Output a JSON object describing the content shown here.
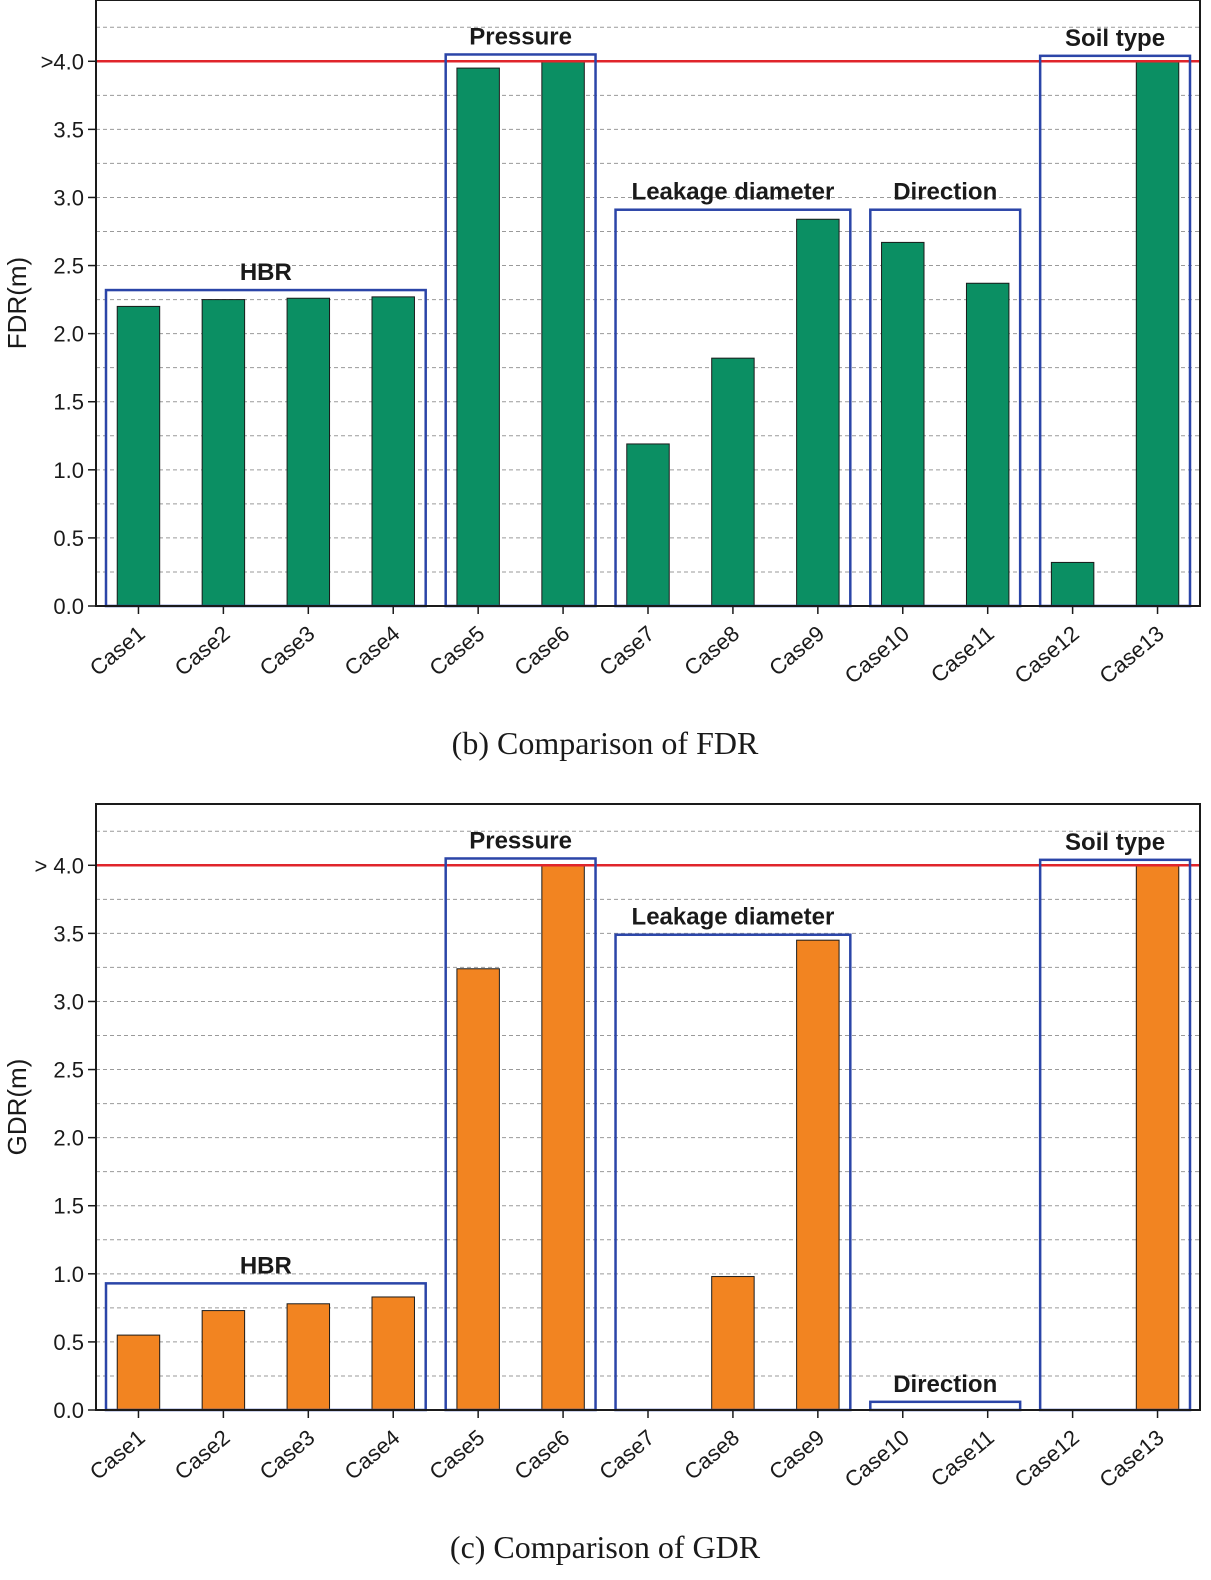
{
  "chart_data": [
    {
      "type": "bar",
      "title": "",
      "caption": "(b) Comparison of FDR",
      "ylabel": "FDR(m)",
      "xlabel": "",
      "categories": [
        "Case1",
        "Case2",
        "Case3",
        "Case4",
        "Case5",
        "Case6",
        "Case7",
        "Case8",
        "Case9",
        "Case10",
        "Case11",
        "Case12",
        "Case13"
      ],
      "values": [
        2.2,
        2.25,
        2.26,
        2.27,
        3.95,
        4.0,
        1.19,
        1.82,
        2.84,
        2.67,
        2.37,
        0.32,
        4.0
      ],
      "ylim": [
        0,
        4.45
      ],
      "yticks": [
        0,
        0.5,
        1.0,
        1.5,
        2.0,
        2.5,
        3.0,
        3.5,
        4.0
      ],
      "ytick_labels": [
        "0.0",
        "0.5",
        "1.0",
        "1.5",
        "2.0",
        "2.5",
        "3.0",
        "3.5",
        ">4.0"
      ],
      "minor_grid_step": 0.25,
      "threshold": 4.0,
      "bar_color": "#0b8f63",
      "groups": [
        {
          "label": "HBR",
          "first": 0,
          "last": 3,
          "top": 2.32
        },
        {
          "label": "Pressure",
          "first": 4,
          "last": 5,
          "top": 4.05
        },
        {
          "label": "Leakage diameter",
          "first": 6,
          "last": 8,
          "top": 2.91
        },
        {
          "label": "Direction",
          "first": 9,
          "last": 10,
          "top": 2.91
        },
        {
          "label": "Soil type",
          "first": 11,
          "last": 12,
          "top": 4.04
        }
      ]
    },
    {
      "type": "bar",
      "title": "",
      "caption": "(c) Comparison of GDR",
      "ylabel": "GDR(m)",
      "xlabel": "",
      "categories": [
        "Case1",
        "Case2",
        "Case3",
        "Case4",
        "Case5",
        "Case6",
        "Case7",
        "Case8",
        "Case9",
        "Case10",
        "Case11",
        "Case12",
        "Case13"
      ],
      "values": [
        0.55,
        0.73,
        0.78,
        0.83,
        3.24,
        4.0,
        0,
        0.98,
        3.45,
        0,
        0,
        0,
        4.0
      ],
      "ylim": [
        0,
        4.45
      ],
      "yticks": [
        0,
        0.5,
        1.0,
        1.5,
        2.0,
        2.5,
        3.0,
        3.5,
        4.0
      ],
      "ytick_labels": [
        "0.0",
        "0.5",
        "1.0",
        "1.5",
        "2.0",
        "2.5",
        "3.0",
        "3.5",
        "> 4.0"
      ],
      "minor_grid_step": 0.25,
      "threshold": 4.0,
      "bar_color": "#f28421",
      "groups": [
        {
          "label": "HBR",
          "first": 0,
          "last": 3,
          "top": 0.93
        },
        {
          "label": "Pressure",
          "first": 4,
          "last": 5,
          "top": 4.05
        },
        {
          "label": "Leakage diameter",
          "first": 6,
          "last": 8,
          "top": 3.49
        },
        {
          "label": "Direction",
          "first": 9,
          "last": 10,
          "top": 0.06
        },
        {
          "label": "Soil type",
          "first": 11,
          "last": 12,
          "top": 4.04
        }
      ]
    }
  ],
  "colors": {
    "threshold_line": "#e0252b",
    "group_box": "#2b45a8",
    "grid": "#9a9a9a",
    "frame": "#1a1a1a"
  }
}
